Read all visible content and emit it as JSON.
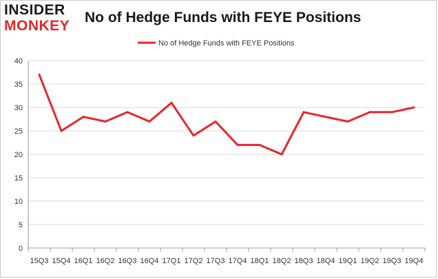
{
  "logo": {
    "line1": "INSIDER",
    "line2": "MONKEY"
  },
  "colors": {
    "series": "#e8262b",
    "grid": "#d9d9d9",
    "axis": "#999999",
    "brand_red": "#e8262b"
  },
  "chart_data": {
    "type": "line",
    "title": "No of Hedge Funds with FEYE Positions",
    "legend": "No of Hedge Funds with FEYE Positions",
    "legend_position": "top",
    "xlabel": "",
    "ylabel": "",
    "ylim": [
      0,
      40
    ],
    "yticks": [
      0,
      5,
      10,
      15,
      20,
      25,
      30,
      35,
      40
    ],
    "grid": true,
    "categories": [
      "15Q3",
      "15Q4",
      "16Q1",
      "16Q2",
      "16Q3",
      "16Q4",
      "17Q1",
      "17Q2",
      "17Q3",
      "17Q4",
      "18Q1",
      "18Q2",
      "18Q3",
      "18Q4",
      "19Q1",
      "19Q2",
      "19Q3",
      "19Q4"
    ],
    "series": [
      {
        "name": "No of Hedge Funds with FEYE Positions",
        "values": [
          37,
          25,
          28,
          27,
          29,
          27,
          31,
          24,
          27,
          22,
          22,
          20,
          29,
          28,
          27,
          29,
          29,
          30
        ]
      }
    ]
  }
}
